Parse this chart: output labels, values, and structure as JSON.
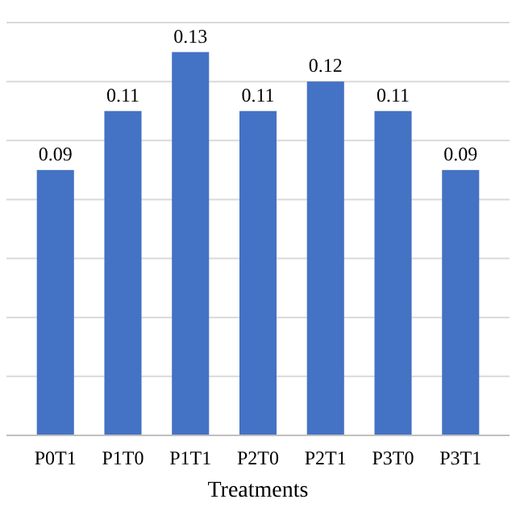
{
  "chart_data": {
    "type": "bar",
    "xlabel": "Treatments",
    "categories": [
      "P0T1",
      "P1T0",
      "P1T1",
      "P2T0",
      "P2T1",
      "P3T0",
      "P3T1"
    ],
    "values": [
      0.09,
      0.11,
      0.13,
      0.11,
      0.12,
      0.11,
      0.09
    ],
    "color": "#4472c4",
    "data_labels": true,
    "grid": "y",
    "tick_labels": "x",
    "ylim": [
      0,
      0.14
    ],
    "yticks": [
      {
        "value": 0,
        "label": null
      },
      {
        "value": 0.02,
        "label": null
      },
      {
        "value": 0.04,
        "label": null
      },
      {
        "value": 0.06,
        "label": null
      },
      {
        "value": 0.08,
        "label": null
      },
      {
        "value": 0.1,
        "label": null
      },
      {
        "value": 0.12,
        "label": null
      },
      {
        "value": 0.14,
        "label": null
      }
    ]
  }
}
